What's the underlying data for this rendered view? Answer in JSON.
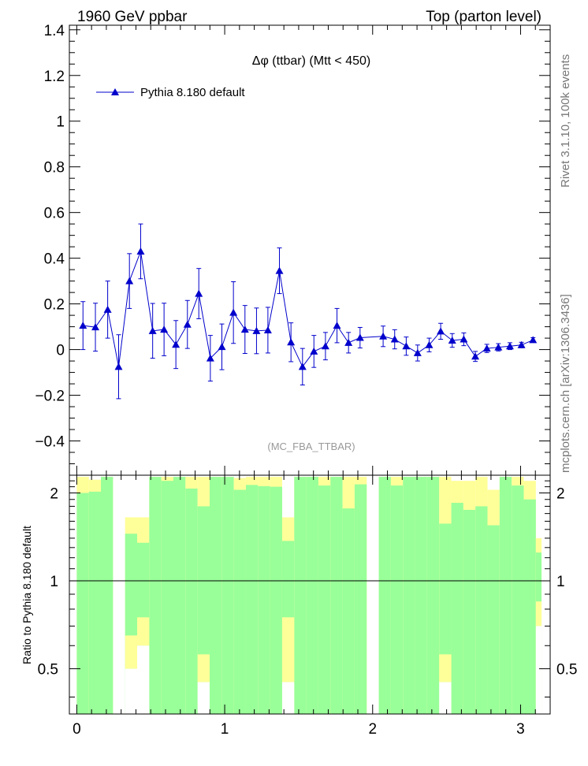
{
  "header": {
    "left": "1960 GeV ppbar",
    "right": "Top (parton level)",
    "side_top": "Rivet 3.1.10,  100k events",
    "side_bottom": "mcplots.cern.ch [arXiv:1306.3436]"
  },
  "colors": {
    "series": "#0000cc",
    "band_inner": "#99ff99",
    "band_outer": "#ffff99",
    "axis": "#000000",
    "watermark": "#999999",
    "side_text": "#777777"
  },
  "chart_data": {
    "type": "line",
    "title": "Δφ (ttbar) (Mtt < 450)",
    "analysis_label": "(MC_FBA_TTBAR)",
    "legend": {
      "position": "top-left",
      "entries": [
        "Pythia 8.180 default"
      ]
    },
    "xlim": [
      -0.05,
      3.2
    ],
    "ylim": [
      -0.55,
      1.42
    ],
    "yticks": [
      -0.4,
      -0.2,
      0,
      0.2,
      0.4,
      0.6,
      0.8,
      1,
      1.2,
      1.4
    ],
    "ytick_labels": [
      "−0.4",
      "−0.2",
      "0",
      "0.2",
      "0.4",
      "0.6",
      "0.8",
      "1",
      "1.2",
      "1.4"
    ],
    "xticks": [
      0,
      1,
      2,
      3
    ],
    "xtick_labels": [
      "0",
      "1",
      "2",
      "3"
    ],
    "series": [
      {
        "name": "Pythia 8.180 default",
        "x": [
          0.042,
          0.126,
          0.209,
          0.283,
          0.356,
          0.432,
          0.513,
          0.59,
          0.67,
          0.748,
          0.825,
          0.903,
          0.981,
          1.059,
          1.137,
          1.215,
          1.292,
          1.37,
          1.448,
          1.526,
          1.603,
          1.681,
          1.759,
          1.837,
          1.915,
          2.071,
          2.149,
          2.227,
          2.304,
          2.382,
          2.46,
          2.538,
          2.616,
          2.694,
          2.772,
          2.85,
          2.928,
          3.006,
          3.084
        ],
        "y": [
          0.105,
          0.098,
          0.175,
          -0.075,
          0.3,
          0.43,
          0.082,
          0.088,
          0.022,
          0.11,
          0.245,
          -0.038,
          0.012,
          0.162,
          0.088,
          0.082,
          0.085,
          0.345,
          0.032,
          -0.075,
          -0.008,
          0.015,
          0.105,
          0.03,
          0.052,
          0.058,
          0.045,
          0.015,
          -0.015,
          0.02,
          0.08,
          0.04,
          0.045,
          -0.03,
          0.005,
          0.01,
          0.015,
          0.02,
          0.042
        ],
        "yerr": [
          0.105,
          0.105,
          0.125,
          0.14,
          0.12,
          0.12,
          0.12,
          0.115,
          0.105,
          0.105,
          0.11,
          0.1,
          0.1,
          0.135,
          0.105,
          0.1,
          0.1,
          0.1,
          0.085,
          0.08,
          0.07,
          0.06,
          0.075,
          0.045,
          0.045,
          0.045,
          0.042,
          0.04,
          0.035,
          0.03,
          0.035,
          0.03,
          0.028,
          0.022,
          0.018,
          0.016,
          0.015,
          0.012,
          0.01
        ]
      }
    ],
    "ratio": {
      "ylabel": "Ratio to Pythia 8.180 default",
      "ylim": [
        0.35,
        2.3
      ],
      "yticks": [
        0.5,
        1,
        2
      ],
      "ytick_labels": [
        "0.5",
        "1",
        "2"
      ],
      "reference": 1.0,
      "bins": [
        [
          0,
          0.0817,
          2.0,
          2.27
        ],
        [
          0.0817,
          0.1633,
          2.02,
          2.22
        ],
        [
          0.1633,
          0.245,
          2.27,
          2.27
        ],
        [
          0.3267,
          0.4083,
          1.45,
          1.65
        ],
        [
          0.4083,
          0.49,
          1.35,
          1.65
        ],
        [
          0.49,
          0.5717,
          2.27,
          2.27
        ],
        [
          0.5717,
          0.6533,
          2.2,
          2.27
        ],
        [
          0.6533,
          0.735,
          2.27,
          2.27
        ],
        [
          0.735,
          0.8167,
          2.07,
          2.27
        ],
        [
          0.8167,
          0.8983,
          1.8,
          2.27
        ],
        [
          0.8983,
          0.98,
          2.27,
          2.27
        ],
        [
          0.98,
          1.0617,
          2.27,
          2.27
        ],
        [
          1.0617,
          1.1433,
          2.05,
          2.25
        ],
        [
          1.1433,
          1.225,
          2.13,
          2.27
        ],
        [
          1.225,
          1.3067,
          2.11,
          2.27
        ],
        [
          1.3067,
          1.3883,
          2.1,
          2.27
        ],
        [
          1.3883,
          1.47,
          1.37,
          1.65
        ],
        [
          1.47,
          1.5517,
          2.27,
          2.27
        ],
        [
          1.5517,
          1.6333,
          2.27,
          2.27
        ],
        [
          1.6333,
          1.715,
          2.12,
          2.27
        ],
        [
          1.715,
          1.7967,
          2.27,
          2.27
        ],
        [
          1.7967,
          1.8783,
          1.77,
          2.27
        ],
        [
          1.8783,
          1.96,
          2.14,
          2.27
        ],
        [
          2.0417,
          2.1233,
          2.27,
          2.27
        ],
        [
          2.1233,
          2.205,
          2.12,
          2.27
        ],
        [
          2.205,
          2.2867,
          2.27,
          2.27
        ],
        [
          2.2867,
          2.3683,
          2.27,
          2.27
        ],
        [
          2.3683,
          2.45,
          2.27,
          2.27
        ],
        [
          2.45,
          2.5317,
          1.57,
          2.27
        ],
        [
          2.5317,
          2.6133,
          1.85,
          2.2
        ],
        [
          2.6133,
          2.695,
          1.75,
          2.2
        ],
        [
          2.695,
          2.7767,
          1.8,
          2.27
        ],
        [
          2.7767,
          2.8583,
          1.55,
          2.05
        ],
        [
          2.8583,
          2.94,
          2.27,
          2.27
        ],
        [
          2.94,
          3.0217,
          2.12,
          2.27
        ],
        [
          3.0217,
          3.1033,
          1.9,
          2.2
        ],
        [
          3.1033,
          3.1416,
          1.25,
          1.4
        ]
      ],
      "lower_bins": [
        [
          0,
          0.1633,
          0.35,
          0.35
        ],
        [
          0.1633,
          0.245,
          0.35,
          0.35
        ],
        [
          0.3267,
          0.4083,
          0.5,
          0.65
        ],
        [
          0.4083,
          0.49,
          0.6,
          0.75
        ],
        [
          0.49,
          0.8167,
          0.35,
          0.35
        ],
        [
          0.8167,
          0.8983,
          0.45,
          0.56
        ],
        [
          0.8983,
          1.3883,
          0.35,
          0.35
        ],
        [
          1.3883,
          1.47,
          0.45,
          0.75
        ],
        [
          1.47,
          1.96,
          0.35,
          0.35
        ],
        [
          2.0417,
          2.45,
          0.35,
          0.35
        ],
        [
          2.45,
          2.5317,
          0.45,
          0.56
        ],
        [
          2.5317,
          3.1033,
          0.35,
          0.35
        ],
        [
          3.1033,
          3.1416,
          0.7,
          0.85
        ]
      ]
    }
  }
}
